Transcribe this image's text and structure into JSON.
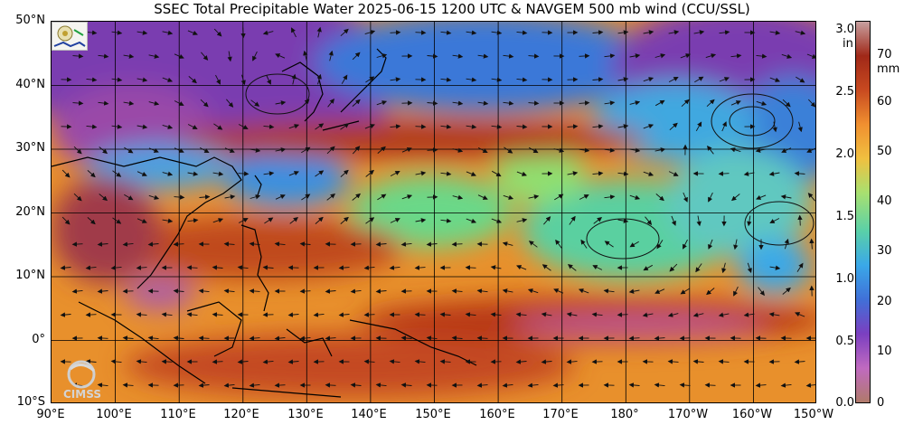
{
  "title": "SSEC Total Precipitable Water  2025-06-15 1200 UTC & NAVGEM 500 mb wind (CCU/SSL)",
  "map": {
    "lon_range": [
      90,
      210
    ],
    "lat_range": [
      -10,
      50
    ],
    "lat_labels": [
      "50°N",
      "40°N",
      "30°N",
      "20°N",
      "10°N",
      "0°",
      "10°S"
    ],
    "lon_labels": [
      "90°E",
      "100°E",
      "110°E",
      "120°E",
      "130°E",
      "140°E",
      "150°E",
      "160°E",
      "170°E",
      "180°",
      "170°W",
      "160°W",
      "150°W"
    ]
  },
  "colorbar": {
    "inch_ticks": [
      "3.0",
      "2.5",
      "2.0",
      "1.5",
      "1.0",
      "0.5",
      "0.0"
    ],
    "inch_unit": "in",
    "mm_ticks": [
      "70",
      "60",
      "50",
      "40",
      "30",
      "20",
      "10",
      "0"
    ],
    "mm_unit": "mm",
    "range_mm": [
      0,
      76
    ],
    "colors": [
      "#b07a6a",
      "#c06ac0",
      "#7b3fc0",
      "#4070d8",
      "#3aa8e8",
      "#5ad0a8",
      "#a8e070",
      "#f0c040",
      "#f09030",
      "#c84a20",
      "#a02818",
      "#c8a0a0"
    ]
  },
  "logos": {
    "ssec": "ssec-logo",
    "cimss_text": "CIMSS"
  }
}
